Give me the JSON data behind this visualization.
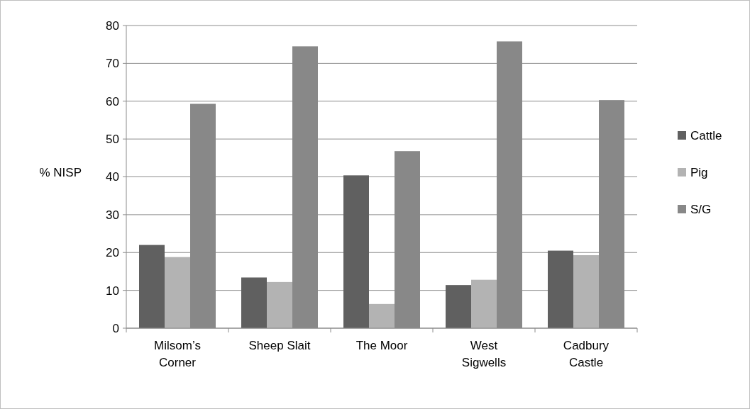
{
  "chart_data": {
    "type": "bar",
    "ylabel": "% NISP",
    "categories": [
      "Milsom’s Corner",
      "Sheep Slait",
      "The Moor",
      "West Sigwells",
      "Cadbury Castle"
    ],
    "series": [
      {
        "name": "Cattle",
        "color": "#606060",
        "values": [
          22,
          13.4,
          40.4,
          11.4,
          20.5
        ]
      },
      {
        "name": "Pig",
        "color": "#b3b3b3",
        "values": [
          18.8,
          12.2,
          6.4,
          12.8,
          19.3
        ]
      },
      {
        "name": "S/G",
        "color": "#888888",
        "values": [
          59.3,
          74.5,
          46.8,
          75.8,
          60.3
        ]
      }
    ],
    "ylim": [
      0,
      80
    ],
    "yticks": [
      0,
      10,
      20,
      30,
      40,
      50,
      60,
      70,
      80
    ],
    "grid": "y",
    "legend": "right"
  }
}
